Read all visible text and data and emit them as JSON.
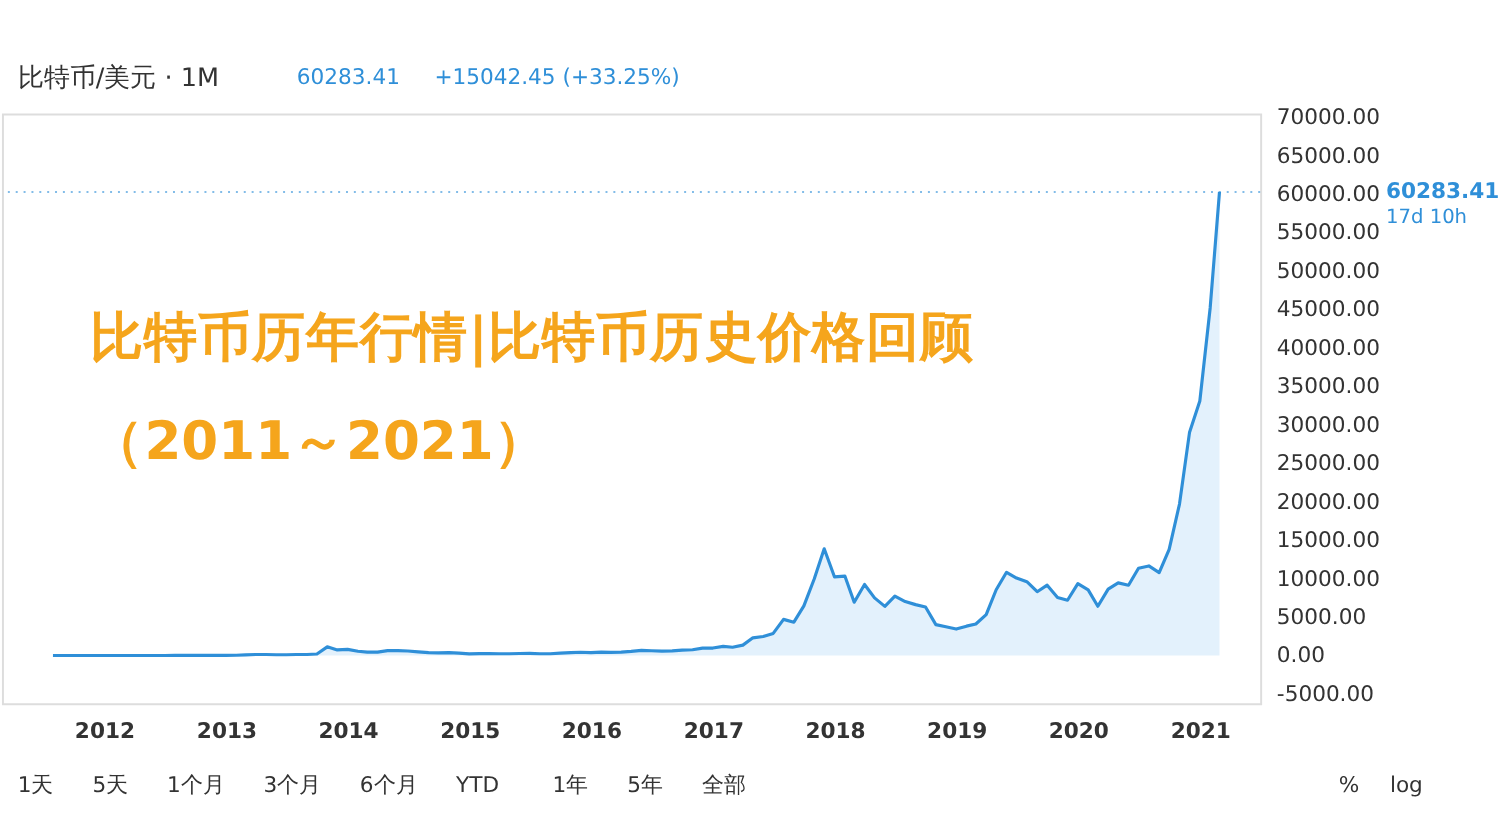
{
  "chart_data": {
    "type": "area",
    "title": "比特币历年行情|比特币历史价格回顾",
    "subtitle": "（2011～2021）",
    "annotations": [
      "比特币/美元 · 1M",
      "60283.41",
      "+15042.45 (+33.25%)",
      "17d 10h",
      "1天",
      "5天",
      "1个月",
      "3个月",
      "6个月",
      "YTD",
      "1年",
      "5年",
      "全部",
      "%",
      "log"
    ],
    "x": [
      "2011-08",
      "2011-09",
      "2011-10",
      "2011-11",
      "2011-12",
      "2012-01",
      "2012-02",
      "2012-03",
      "2012-04",
      "2012-05",
      "2012-06",
      "2012-07",
      "2012-08",
      "2012-09",
      "2012-10",
      "2012-11",
      "2012-12",
      "2013-01",
      "2013-02",
      "2013-03",
      "2013-04",
      "2013-05",
      "2013-06",
      "2013-07",
      "2013-08",
      "2013-09",
      "2013-10",
      "2013-11",
      "2013-12",
      "2014-01",
      "2014-02",
      "2014-03",
      "2014-04",
      "2014-05",
      "2014-06",
      "2014-07",
      "2014-08",
      "2014-09",
      "2014-10",
      "2014-11",
      "2014-12",
      "2015-01",
      "2015-02",
      "2015-03",
      "2015-04",
      "2015-05",
      "2015-06",
      "2015-07",
      "2015-08",
      "2015-09",
      "2015-10",
      "2015-11",
      "2015-12",
      "2016-01",
      "2016-02",
      "2016-03",
      "2016-04",
      "2016-05",
      "2016-06",
      "2016-07",
      "2016-08",
      "2016-09",
      "2016-10",
      "2016-11",
      "2016-12",
      "2017-01",
      "2017-02",
      "2017-03",
      "2017-04",
      "2017-05",
      "2017-06",
      "2017-07",
      "2017-08",
      "2017-09",
      "2017-10",
      "2017-11",
      "2017-12",
      "2018-01",
      "2018-02",
      "2018-03",
      "2018-04",
      "2018-05",
      "2018-06",
      "2018-07",
      "2018-08",
      "2018-09",
      "2018-10",
      "2018-11",
      "2018-12",
      "2019-01",
      "2019-02",
      "2019-03",
      "2019-04",
      "2019-05",
      "2019-06",
      "2019-07",
      "2019-08",
      "2019-09",
      "2019-10",
      "2019-11",
      "2019-12",
      "2020-01",
      "2020-02",
      "2020-03",
      "2020-04",
      "2020-05",
      "2020-06",
      "2020-07",
      "2020-08",
      "2020-09",
      "2020-10",
      "2020-11",
      "2020-12",
      "2021-01",
      "2021-02",
      "2021-03"
    ],
    "series": [
      {
        "color": "#2f8fd8",
        "values": [
          8,
          5,
          3,
          3,
          5,
          6,
          5,
          5,
          5,
          5,
          7,
          9,
          10,
          12,
          11,
          12,
          13,
          20,
          33,
          93,
          139,
          129,
          97,
          106,
          135,
          133,
          204,
          1130,
          730,
          800,
          550,
          450,
          445,
          630,
          640,
          585,
          480,
          385,
          338,
          378,
          320,
          218,
          254,
          244,
          236,
          230,
          263,
          284,
          230,
          236,
          314,
          377,
          430,
          369,
          437,
          416,
          448,
          531,
          673,
          624,
          575,
          609,
          700,
          745,
          964,
          970,
          1190,
          1080,
          1350,
          2300,
          2480,
          2875,
          4700,
          4340,
          6450,
          9950,
          13880,
          10220,
          10330,
          6930,
          9240,
          7500,
          6390,
          7730,
          7020,
          6620,
          6320,
          4020,
          3740,
          3440,
          3820,
          4100,
          5320,
          8550,
          10820,
          10080,
          9600,
          8300,
          9150,
          7550,
          7190,
          9350,
          8540,
          6410,
          8630,
          9450,
          9140,
          11350,
          11650,
          10780,
          13800,
          19700,
          28990,
          33100,
          45200,
          60283.41
        ]
      }
    ],
    "xlim": [
      "2011-03",
      "2021-07"
    ],
    "xticks": [
      "2012",
      "2013",
      "2014",
      "2015",
      "2016",
      "2017",
      "2018",
      "2019",
      "2020",
      "2021"
    ],
    "ylim": [
      -6200,
      70500
    ],
    "yticks": [
      {
        "value": -5000,
        "label": "-5000.00"
      },
      {
        "value": 0,
        "label": "0.00"
      },
      {
        "value": 5000,
        "label": "5000.00"
      },
      {
        "value": 10000,
        "label": "10000.00"
      },
      {
        "value": 15000,
        "label": "15000.00"
      },
      {
        "value": 20000,
        "label": "20000.00"
      },
      {
        "value": 25000,
        "label": "25000.00"
      },
      {
        "value": 30000,
        "label": "30000.00"
      },
      {
        "value": 35000,
        "label": "35000.00"
      },
      {
        "value": 40000,
        "label": "40000.00"
      },
      {
        "value": 45000,
        "label": "45000.00"
      },
      {
        "value": 50000,
        "label": "50000.00"
      },
      {
        "value": 55000,
        "label": "55000.00"
      },
      {
        "value": 60000,
        "label": "60000.00"
      },
      {
        "value": 65000,
        "label": "65000.00"
      },
      {
        "value": 70000,
        "label": "70000.00"
      }
    ],
    "ref_lines": [
      {
        "axis": "y",
        "value": 60283.41,
        "label": "60283.41",
        "color": "#2f8fd8",
        "line_style": "dotted"
      }
    ],
    "grid": false
  }
}
